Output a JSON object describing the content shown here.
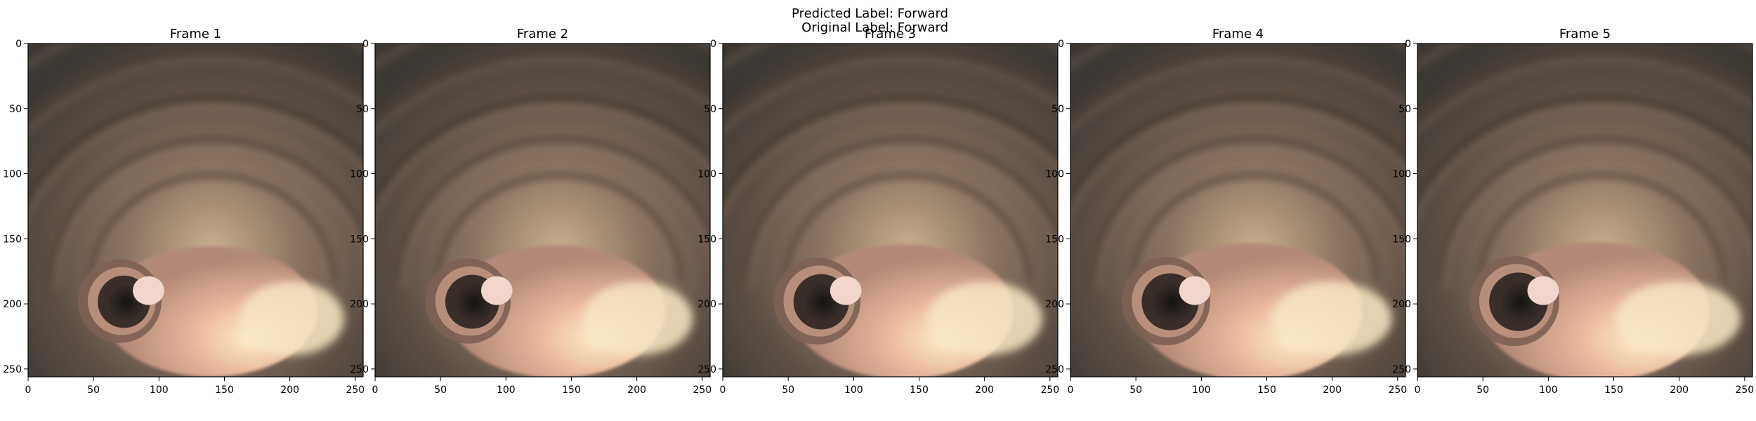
{
  "suptitle": {
    "predicted": "Predicted Label: Forward",
    "original": "Original Label: Forward"
  },
  "frames": [
    {
      "title": "Frame 1",
      "hole_shift": 0
    },
    {
      "title": "Frame 2",
      "hole_shift": 2
    },
    {
      "title": "Frame 3",
      "hole_shift": 4
    },
    {
      "title": "Frame 4",
      "hole_shift": 6
    },
    {
      "title": "Frame 5",
      "hole_shift": 8
    }
  ],
  "axes": {
    "xticks": [
      "0",
      "50",
      "100",
      "150",
      "200",
      "250"
    ],
    "yticks": [
      "0",
      "50",
      "100",
      "150",
      "200",
      "250"
    ],
    "xlim": [
      0,
      256
    ],
    "ylim": [
      0,
      256
    ]
  },
  "colors": {
    "background_dark": "#3b3a35",
    "wall": "#8a7565",
    "wall_dark": "#5c4e44",
    "lumen_light": "#f6e7c2",
    "lumen_mid": "#d9a48c",
    "lumen_shadow": "#252220"
  }
}
